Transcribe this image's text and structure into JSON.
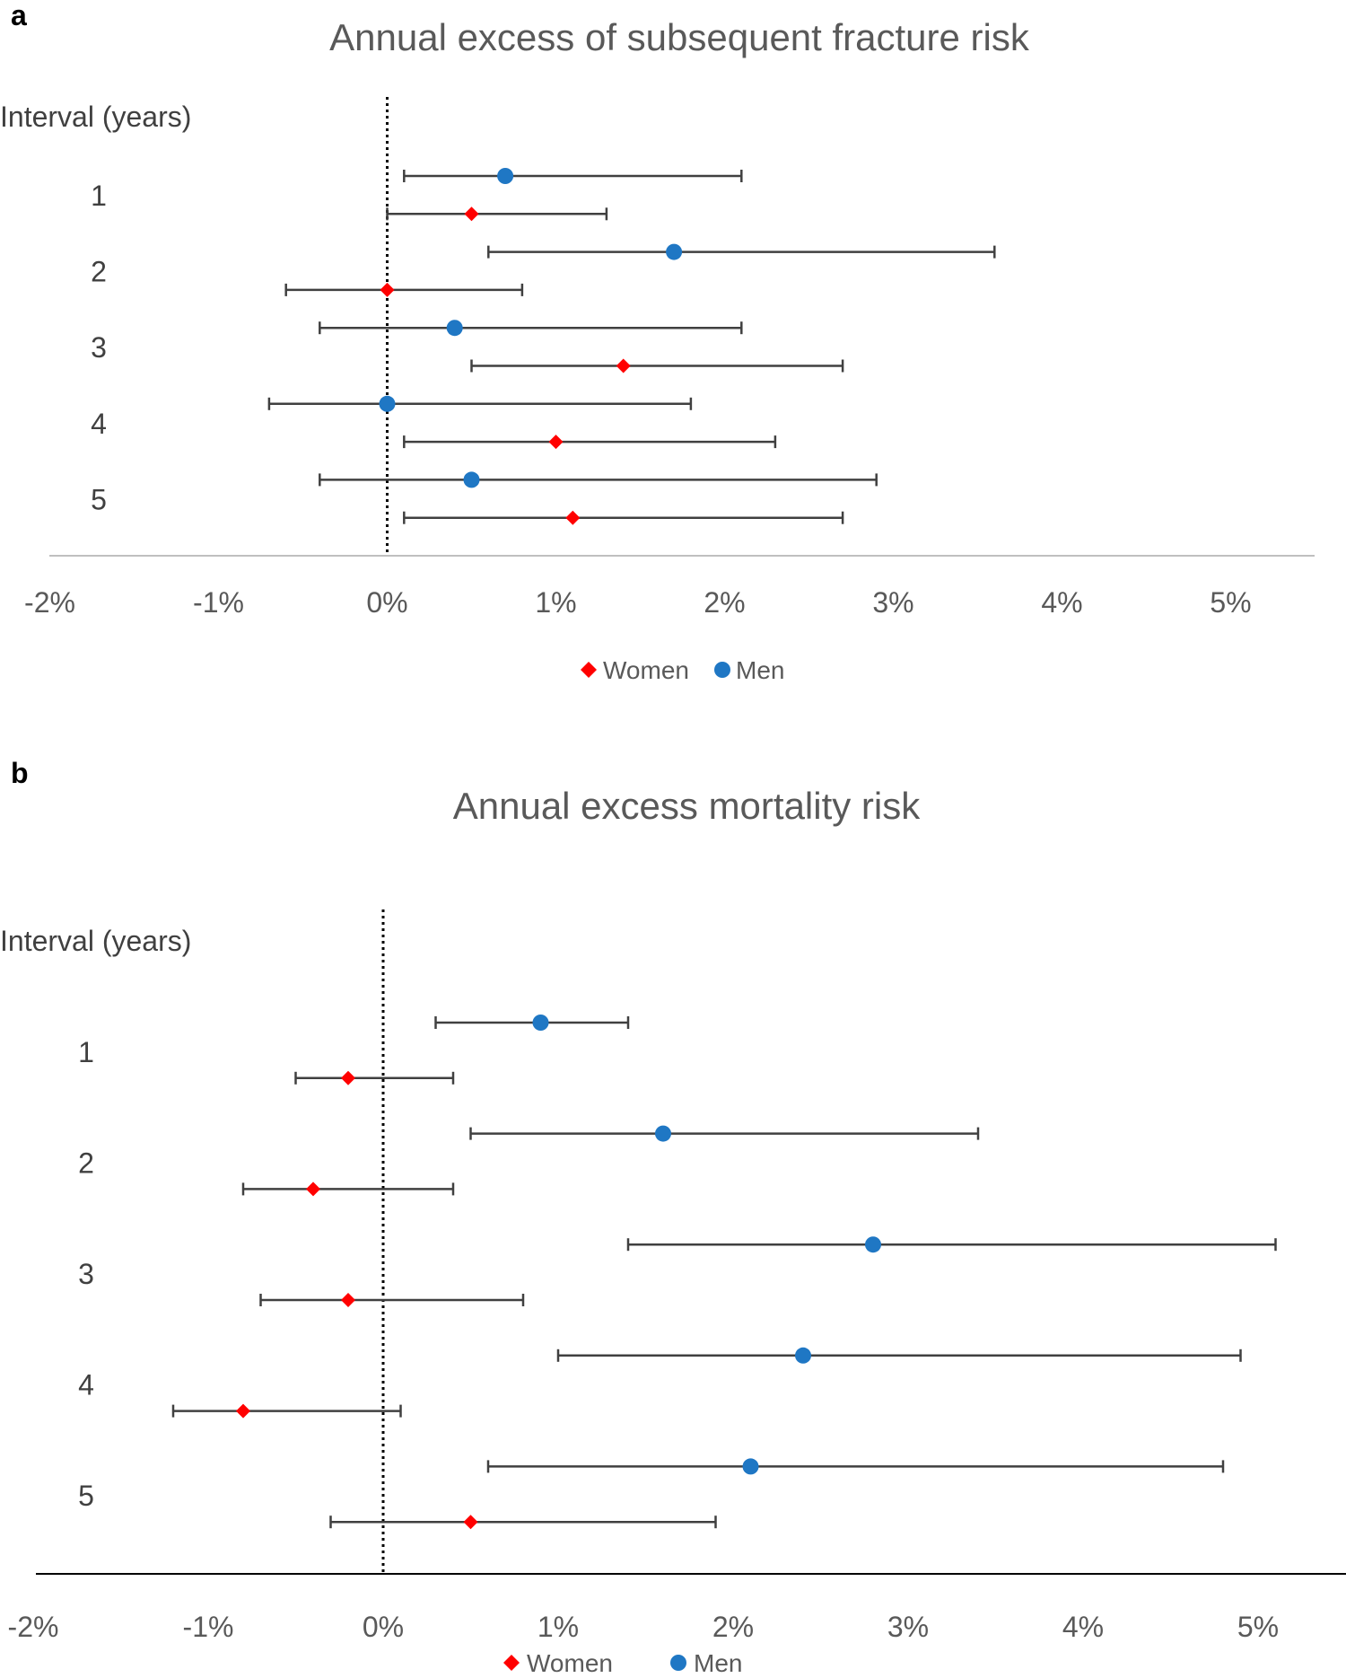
{
  "chart_data": [
    {
      "type": "forest",
      "panel_letter": "a",
      "title": "Annual excess of subsequent fracture risk",
      "row_header": "Interval (years)",
      "categories": [
        "1",
        "2",
        "3",
        "4",
        "5"
      ],
      "xlim": [
        -2,
        5.5
      ],
      "xticks": [
        -2,
        -1,
        0,
        1,
        2,
        3,
        4,
        5
      ],
      "tick_labels": [
        "-2%",
        "-1%",
        "0%",
        "1%",
        "2%",
        "3%",
        "4%",
        "5%"
      ],
      "reference_line": 0,
      "legend": [
        "Women",
        "Men"
      ],
      "series": [
        {
          "name": "Men",
          "color": "#1f77c4",
          "marker": "circle",
          "points": [
            {
              "interval": "1",
              "estimate": 0.7,
              "lower": 0.1,
              "upper": 2.1
            },
            {
              "interval": "2",
              "estimate": 1.7,
              "lower": 0.6,
              "upper": 3.6
            },
            {
              "interval": "3",
              "estimate": 0.4,
              "lower": -0.4,
              "upper": 2.1
            },
            {
              "interval": "4",
              "estimate": 0.0,
              "lower": -0.7,
              "upper": 1.8
            },
            {
              "interval": "5",
              "estimate": 0.5,
              "lower": -0.4,
              "upper": 2.9
            }
          ]
        },
        {
          "name": "Women",
          "color": "#ff0000",
          "marker": "diamond",
          "points": [
            {
              "interval": "1",
              "estimate": 0.5,
              "lower": 0.0,
              "upper": 1.3
            },
            {
              "interval": "2",
              "estimate": 0.0,
              "lower": -0.6,
              "upper": 0.8
            },
            {
              "interval": "3",
              "estimate": 1.4,
              "lower": 0.5,
              "upper": 2.7
            },
            {
              "interval": "4",
              "estimate": 1.0,
              "lower": 0.1,
              "upper": 2.3
            },
            {
              "interval": "5",
              "estimate": 1.1,
              "lower": 0.1,
              "upper": 2.7
            }
          ]
        }
      ]
    },
    {
      "type": "forest",
      "panel_letter": "b",
      "title": "Annual excess mortality risk",
      "row_header": "Interval (years)",
      "categories": [
        "1",
        "2",
        "3",
        "4",
        "5"
      ],
      "xlim": [
        -2,
        5.5
      ],
      "xticks": [
        -2,
        -1,
        0,
        1,
        2,
        3,
        4,
        5
      ],
      "tick_labels": [
        "-2%",
        "-1%",
        "0%",
        "1%",
        "2%",
        "3%",
        "4%",
        "5%"
      ],
      "reference_line": 0,
      "legend": [
        "Women",
        "Men"
      ],
      "series": [
        {
          "name": "Men",
          "color": "#1f77c4",
          "marker": "circle",
          "points": [
            {
              "interval": "1",
              "estimate": 0.9,
              "lower": 0.3,
              "upper": 1.4
            },
            {
              "interval": "2",
              "estimate": 1.6,
              "lower": 0.5,
              "upper": 3.4
            },
            {
              "interval": "3",
              "estimate": 2.8,
              "lower": 1.4,
              "upper": 5.1
            },
            {
              "interval": "4",
              "estimate": 2.4,
              "lower": 1.0,
              "upper": 4.9
            },
            {
              "interval": "5",
              "estimate": 2.1,
              "lower": 0.6,
              "upper": 4.8
            }
          ]
        },
        {
          "name": "Women",
          "color": "#ff0000",
          "marker": "diamond",
          "points": [
            {
              "interval": "1",
              "estimate": -0.2,
              "lower": -0.5,
              "upper": 0.4
            },
            {
              "interval": "2",
              "estimate": -0.4,
              "lower": -0.8,
              "upper": 0.4
            },
            {
              "interval": "3",
              "estimate": -0.2,
              "lower": -0.7,
              "upper": 0.8
            },
            {
              "interval": "4",
              "estimate": -0.8,
              "lower": -1.2,
              "upper": 0.1
            },
            {
              "interval": "5",
              "estimate": 0.5,
              "lower": -0.3,
              "upper": 1.9
            }
          ]
        }
      ]
    }
  ]
}
